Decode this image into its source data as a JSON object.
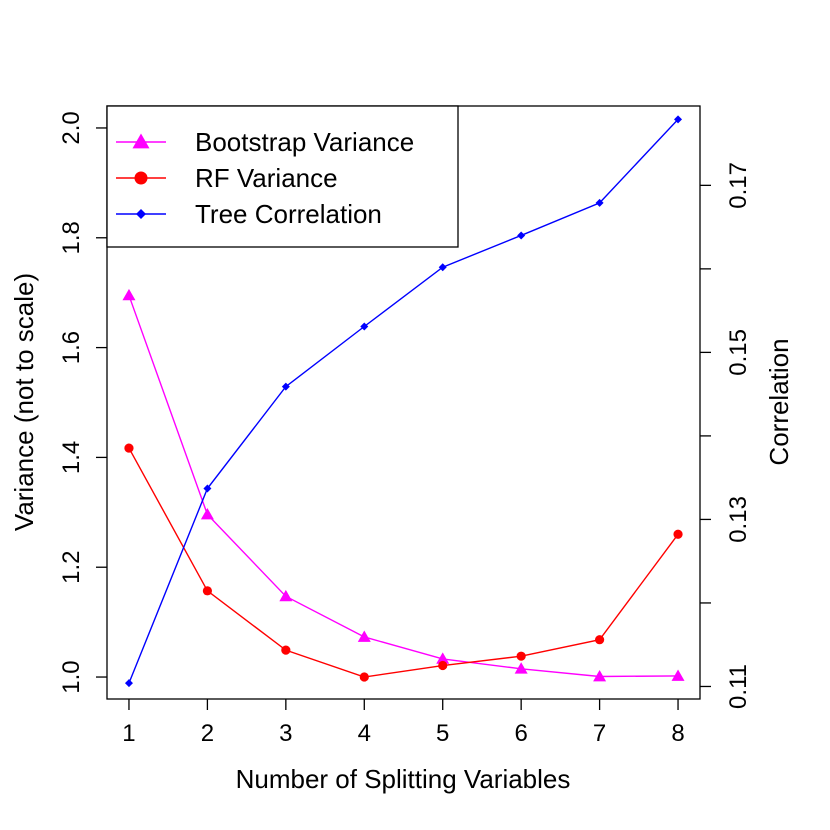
{
  "chart_data": {
    "type": "line",
    "title": "",
    "xlabel": "Number of Splitting Variables",
    "ylabel": "Variance (not to scale)",
    "y2label": "Correlation",
    "x": [
      1,
      2,
      3,
      4,
      5,
      6,
      7,
      8
    ],
    "xlim": [
      0.72,
      8.28
    ],
    "ylim": [
      0.96,
      2.04
    ],
    "y2lim": [
      0.1085,
      0.1795
    ],
    "xticks": [
      "1",
      "2",
      "3",
      "4",
      "5",
      "6",
      "7",
      "8"
    ],
    "yticks": [
      "1.0",
      "1.2",
      "1.4",
      "1.6",
      "1.8",
      "2.0"
    ],
    "y2ticks": [
      {
        "value": 0.11,
        "label": "0.11"
      },
      {
        "value": 0.12,
        "label": ""
      },
      {
        "value": 0.13,
        "label": "0.13"
      },
      {
        "value": 0.14,
        "label": ""
      },
      {
        "value": 0.15,
        "label": "0.15"
      },
      {
        "value": 0.16,
        "label": ""
      },
      {
        "value": 0.17,
        "label": "0.17"
      }
    ],
    "grid": false,
    "legend_position": "top-left",
    "series": [
      {
        "name": "Bootstrap Variance",
        "axis": "left",
        "color": "#ff00ff",
        "marker": "triangle",
        "values": [
          1.695,
          1.296,
          1.147,
          1.073,
          1.033,
          1.015,
          1.001,
          1.002
        ]
      },
      {
        "name": "RF Variance",
        "axis": "left",
        "color": "#ff0000",
        "marker": "circle",
        "values": [
          1.417,
          1.157,
          1.049,
          1.0,
          1.021,
          1.038,
          1.068,
          1.26
        ]
      },
      {
        "name": "Tree Correlation",
        "axis": "right",
        "color": "#0000ff",
        "marker": "diamond",
        "values": [
          0.1104,
          0.1337,
          0.1459,
          0.1531,
          0.1602,
          0.164,
          0.1679,
          0.1779
        ]
      }
    ]
  }
}
